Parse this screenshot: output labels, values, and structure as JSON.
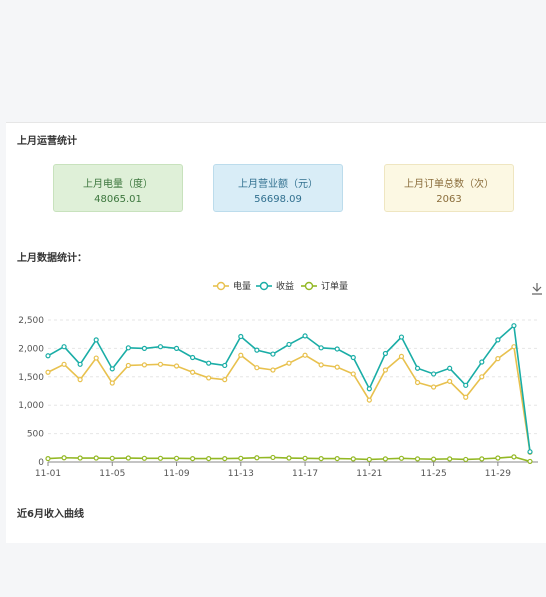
{
  "panel": {
    "ops_title": "上月运营统计",
    "data_title": "上月数据统计：",
    "trend_title": "近6月收入曲线"
  },
  "cards": {
    "electricity_label": "上月电量（度）",
    "electricity_value": "48065.01",
    "revenue_label": "上月营业额（元）",
    "revenue_value": "56698.09",
    "orders_label": "上月订单总数（次）",
    "orders_value": "2063"
  },
  "chart_data": {
    "type": "line",
    "x": [
      "11-01",
      "11-02",
      "11-03",
      "11-04",
      "11-05",
      "11-06",
      "11-07",
      "11-08",
      "11-09",
      "11-10",
      "11-11",
      "11-12",
      "11-13",
      "11-14",
      "11-15",
      "11-16",
      "11-17",
      "11-18",
      "11-19",
      "11-20",
      "11-21",
      "11-22",
      "11-23",
      "11-24",
      "11-25",
      "11-26",
      "11-27",
      "11-28",
      "11-29",
      "11-30",
      "12-01"
    ],
    "x_tick_labels": [
      "11-01",
      "11-05",
      "11-09",
      "11-13",
      "11-17",
      "11-21",
      "11-25",
      "11-29"
    ],
    "ylim": [
      0,
      2500
    ],
    "yticks": [
      0,
      500,
      1000,
      1500,
      2000,
      2500
    ],
    "ytick_labels": [
      "0",
      "500",
      "1,000",
      "1,500",
      "2,000",
      "2,500"
    ],
    "grid": true,
    "legend_position": "top-center",
    "series": [
      {
        "name": "电量",
        "color": "#e8c14e",
        "values": [
          1580,
          1720,
          1450,
          1830,
          1390,
          1700,
          1710,
          1720,
          1690,
          1580,
          1480,
          1450,
          1880,
          1660,
          1620,
          1740,
          1880,
          1710,
          1670,
          1550,
          1090,
          1620,
          1860,
          1400,
          1320,
          1420,
          1140,
          1500,
          1820,
          2030,
          170
        ]
      },
      {
        "name": "收益",
        "color": "#1aada6",
        "values": [
          1870,
          2030,
          1720,
          2150,
          1640,
          2010,
          2000,
          2030,
          2000,
          1840,
          1740,
          1700,
          2210,
          1970,
          1900,
          2070,
          2220,
          2010,
          1990,
          1840,
          1290,
          1910,
          2200,
          1650,
          1550,
          1650,
          1350,
          1760,
          2150,
          2400,
          180
        ]
      },
      {
        "name": "订单量",
        "color": "#93b824",
        "values": [
          60,
          75,
          70,
          70,
          65,
          70,
          65,
          65,
          65,
          60,
          60,
          60,
          65,
          75,
          80,
          70,
          65,
          60,
          60,
          55,
          45,
          55,
          65,
          55,
          50,
          55,
          45,
          55,
          70,
          90,
          10
        ]
      }
    ]
  },
  "icons": {
    "download": "download-icon"
  }
}
